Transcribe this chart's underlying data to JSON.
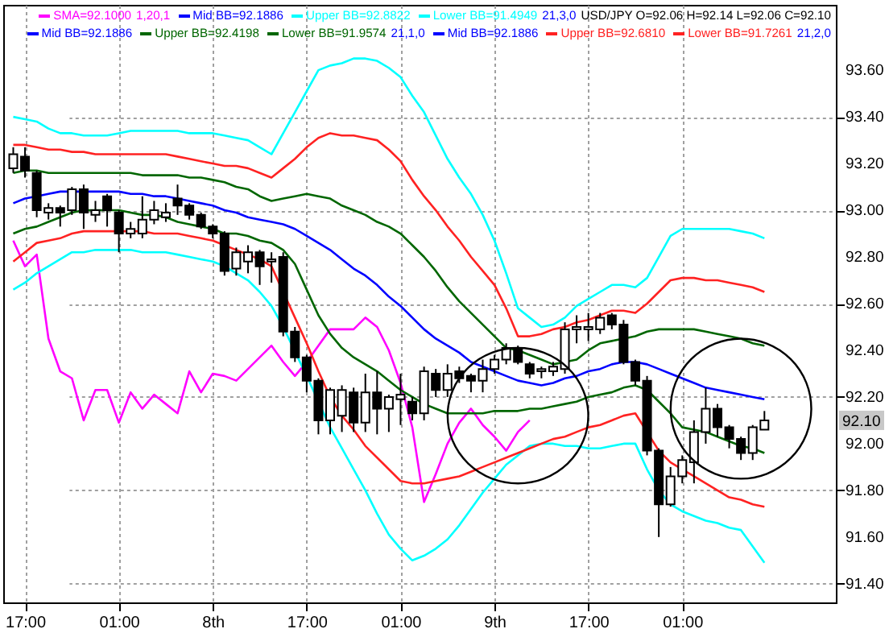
{
  "chart_data": {
    "type": "candlestick",
    "title": "USD/JPY O=92.06 H=92.14 L=92.06 C=92.10",
    "categories": [
      null,
      "17:00",
      null,
      null,
      null,
      null,
      null,
      null,
      null,
      "01:00",
      null,
      null,
      null,
      null,
      null,
      null,
      null,
      "8th",
      null,
      null,
      null,
      null,
      null,
      null,
      null,
      "17:00",
      null,
      null,
      null,
      null,
      null,
      null,
      null,
      "01:00",
      null,
      null,
      null,
      null,
      null,
      null,
      null,
      "9th",
      null,
      null,
      null,
      null,
      null,
      null,
      null,
      "17:00",
      null,
      null,
      null,
      null,
      null,
      null,
      null,
      "01:00",
      null,
      null,
      null,
      null,
      null,
      null,
      null
    ],
    "ohlc": [
      [
        93.18,
        93.27,
        93.16,
        93.24
      ],
      [
        93.23,
        93.27,
        93.14,
        93.17
      ],
      [
        93.16,
        93.17,
        92.97,
        93.0
      ],
      [
        92.99,
        93.03,
        92.96,
        93.01
      ],
      [
        93.01,
        93.02,
        92.93,
        92.99
      ],
      [
        93.0,
        93.1,
        92.98,
        93.09
      ],
      [
        93.09,
        93.11,
        92.92,
        92.99
      ],
      [
        92.98,
        93.04,
        92.95,
        93.0
      ],
      [
        93.06,
        93.07,
        92.93,
        93.0
      ],
      [
        92.99,
        93.0,
        92.82,
        92.9
      ],
      [
        92.9,
        92.95,
        92.88,
        92.92
      ],
      [
        92.9,
        93.06,
        92.88,
        92.96
      ],
      [
        92.96,
        93.04,
        92.94,
        93.0
      ],
      [
        92.97,
        93.03,
        92.95,
        92.99
      ],
      [
        93.05,
        93.11,
        92.98,
        93.02
      ],
      [
        93.02,
        93.03,
        92.96,
        92.98
      ],
      [
        92.98,
        92.99,
        92.92,
        92.93
      ],
      [
        92.93,
        92.94,
        92.88,
        92.9
      ],
      [
        92.9,
        92.91,
        92.72,
        92.74
      ],
      [
        92.75,
        92.84,
        92.72,
        92.82
      ],
      [
        92.78,
        92.85,
        92.73,
        92.82
      ],
      [
        92.82,
        92.83,
        92.68,
        92.76
      ],
      [
        92.78,
        92.82,
        92.69,
        92.79
      ],
      [
        92.8,
        92.82,
        92.46,
        92.48
      ],
      [
        92.48,
        92.5,
        92.35,
        92.37
      ],
      [
        92.37,
        92.38,
        92.22,
        92.27
      ],
      [
        92.27,
        92.28,
        92.04,
        92.1
      ],
      [
        92.1,
        92.24,
        92.04,
        92.23
      ],
      [
        92.12,
        92.25,
        92.05,
        92.23
      ],
      [
        92.22,
        92.24,
        92.05,
        92.09
      ],
      [
        92.09,
        92.3,
        92.05,
        92.22
      ],
      [
        92.22,
        92.31,
        92.04,
        92.15
      ],
      [
        92.15,
        92.21,
        92.05,
        92.2
      ],
      [
        92.19,
        92.3,
        92.08,
        92.21
      ],
      [
        92.18,
        92.2,
        92.1,
        92.13
      ],
      [
        92.13,
        92.33,
        92.1,
        92.31
      ],
      [
        92.3,
        92.32,
        92.2,
        92.23
      ],
      [
        92.23,
        92.34,
        92.2,
        92.3
      ],
      [
        92.31,
        92.33,
        92.26,
        92.28
      ],
      [
        92.29,
        92.3,
        92.22,
        92.27
      ],
      [
        92.27,
        92.36,
        92.22,
        92.32
      ],
      [
        92.32,
        92.38,
        92.3,
        92.36
      ],
      [
        92.36,
        92.43,
        92.34,
        92.41
      ],
      [
        92.41,
        92.42,
        92.34,
        92.35
      ],
      [
        92.34,
        92.35,
        92.28,
        92.3
      ],
      [
        92.31,
        92.33,
        92.28,
        92.32
      ],
      [
        92.31,
        92.35,
        92.29,
        92.33
      ],
      [
        92.32,
        92.52,
        92.3,
        92.49
      ],
      [
        92.49,
        92.55,
        92.43,
        92.5
      ],
      [
        92.49,
        92.56,
        92.44,
        92.5
      ],
      [
        92.49,
        92.56,
        92.47,
        92.54
      ],
      [
        92.55,
        92.56,
        92.49,
        92.51
      ],
      [
        92.51,
        92.53,
        92.34,
        92.35
      ],
      [
        92.35,
        92.36,
        92.25,
        92.27
      ],
      [
        92.27,
        92.29,
        91.95,
        91.97
      ],
      [
        91.97,
        91.98,
        91.6,
        91.74
      ],
      [
        91.74,
        91.9,
        91.73,
        91.86
      ],
      [
        91.86,
        91.95,
        91.83,
        91.93
      ],
      [
        91.92,
        92.1,
        91.83,
        92.05
      ],
      [
        92.05,
        92.24,
        92.0,
        92.15
      ],
      [
        92.15,
        92.17,
        92.03,
        92.07
      ],
      [
        92.07,
        92.08,
        91.98,
        92.02
      ],
      [
        92.02,
        92.03,
        91.93,
        91.96
      ],
      [
        91.96,
        92.08,
        91.93,
        92.07
      ],
      [
        92.06,
        92.14,
        92.06,
        92.1
      ]
    ],
    "series": [
      {
        "name": "SMA=92.1000",
        "type": "line",
        "color": "#ff00ff",
        "values": [
          92.87,
          92.76,
          92.81,
          92.45,
          92.31,
          92.28,
          92.1,
          92.23,
          92.23,
          92.09,
          92.22,
          92.15,
          92.21,
          92.17,
          92.13,
          92.31,
          92.22,
          92.3,
          92.29,
          92.27,
          92.32,
          92.37,
          92.42,
          92.35,
          92.29,
          92.35,
          92.42,
          92.49,
          92.49,
          92.49,
          92.54,
          92.5,
          92.4,
          92.26,
          92.07,
          91.75,
          91.87,
          92.0,
          92.09,
          92.15,
          92.08,
          92.03,
          91.97,
          92.05,
          92.1,
          null,
          null,
          null,
          null,
          null,
          null,
          null,
          null,
          null,
          null,
          null,
          null,
          null,
          null,
          null,
          null,
          null,
          null,
          null,
          null
        ]
      },
      {
        "name": "Mid BB=92.1886",
        "type": "line",
        "color": "#0000ff",
        "values": [
          93.03,
          93.05,
          93.06,
          93.07,
          93.08,
          93.08,
          93.08,
          93.08,
          93.08,
          93.08,
          93.07,
          93.07,
          93.06,
          93.06,
          93.05,
          93.04,
          93.03,
          93.02,
          93.0,
          92.99,
          92.97,
          92.96,
          92.95,
          92.94,
          92.92,
          92.89,
          92.86,
          92.83,
          92.79,
          92.75,
          92.72,
          92.68,
          92.63,
          92.59,
          92.54,
          92.49,
          92.45,
          92.42,
          92.39,
          92.35,
          92.33,
          92.31,
          92.29,
          92.27,
          92.26,
          92.25,
          92.26,
          92.28,
          92.29,
          92.31,
          92.32,
          92.34,
          92.35,
          92.35,
          92.34,
          92.32,
          92.3,
          92.28,
          92.26,
          92.24,
          92.23,
          92.22,
          92.21,
          92.2,
          92.19
        ]
      },
      {
        "name": "Upper BB=92.8822",
        "type": "line",
        "color": "#00ffff",
        "values": [
          93.4,
          93.39,
          93.38,
          93.35,
          93.33,
          93.33,
          93.32,
          93.32,
          93.32,
          93.33,
          93.34,
          93.34,
          93.34,
          93.34,
          93.34,
          93.33,
          93.33,
          93.33,
          93.32,
          93.31,
          93.3,
          93.27,
          93.24,
          93.33,
          93.42,
          93.51,
          93.6,
          93.62,
          93.63,
          93.65,
          93.65,
          93.64,
          93.61,
          93.57,
          93.49,
          93.42,
          93.32,
          93.22,
          93.14,
          93.07,
          92.98,
          92.87,
          92.73,
          92.58,
          92.54,
          92.5,
          92.51,
          92.54,
          92.59,
          92.62,
          92.65,
          92.68,
          92.68,
          92.67,
          92.71,
          92.8,
          92.89,
          92.92,
          92.92,
          92.92,
          92.92,
          92.92,
          92.91,
          92.9,
          92.88
        ]
      },
      {
        "name": "Lower BB=91.4949",
        "type": "line",
        "color": "#00ffff",
        "values": [
          92.66,
          92.69,
          92.73,
          92.76,
          92.79,
          92.82,
          92.82,
          92.83,
          92.83,
          92.83,
          92.83,
          92.82,
          92.82,
          92.82,
          92.81,
          92.8,
          92.79,
          92.78,
          92.76,
          92.73,
          92.7,
          92.65,
          92.59,
          92.5,
          null,
          92.29,
          null,
          92.07,
          91.98,
          91.89,
          91.8,
          91.7,
          91.61,
          91.55,
          91.5,
          91.52,
          91.55,
          91.59,
          91.65,
          91.72,
          91.79,
          91.85,
          91.91,
          91.95,
          91.99,
          92.0,
          92.0,
          91.99,
          91.99,
          91.98,
          91.98,
          91.99,
          92.0,
          92.0,
          91.89,
          91.8,
          91.74,
          91.71,
          91.69,
          91.67,
          91.66,
          91.64,
          91.63,
          91.56,
          91.49
        ]
      },
      {
        "name": "Upper BB=92.4198",
        "type": "line",
        "color": "#006600",
        "values": [
          93.16,
          93.17,
          93.17,
          93.16,
          93.16,
          93.16,
          93.16,
          93.16,
          93.16,
          93.16,
          93.16,
          93.15,
          93.15,
          93.15,
          93.15,
          93.14,
          93.14,
          93.13,
          93.12,
          93.1,
          93.09,
          93.06,
          93.04,
          93.05,
          93.06,
          93.07,
          93.06,
          93.05,
          93.02,
          93.0,
          92.98,
          92.95,
          92.93,
          92.9,
          92.85,
          92.8,
          92.74,
          92.67,
          92.61,
          92.56,
          92.51,
          92.46,
          92.41,
          92.4,
          92.38,
          92.36,
          92.34,
          92.35,
          92.36,
          92.4,
          92.43,
          92.44,
          92.45,
          92.46,
          92.48,
          92.49,
          92.49,
          92.49,
          92.49,
          92.48,
          92.47,
          92.46,
          92.45,
          92.43,
          92.42
        ]
      },
      {
        "name": "Lower BB=91.9574",
        "type": "line",
        "color": "#006600",
        "values": [
          92.9,
          92.92,
          92.93,
          92.95,
          92.97,
          92.99,
          93.0,
          93.0,
          93.0,
          93.0,
          92.99,
          92.98,
          92.98,
          92.97,
          92.95,
          92.94,
          92.93,
          92.92,
          92.9,
          92.9,
          92.89,
          92.87,
          92.86,
          92.83,
          92.77,
          92.66,
          92.55,
          92.47,
          92.41,
          92.37,
          92.34,
          92.31,
          92.27,
          92.23,
          92.2,
          92.17,
          92.15,
          92.13,
          92.13,
          92.13,
          92.13,
          92.14,
          92.14,
          92.14,
          92.15,
          92.15,
          92.16,
          92.17,
          92.18,
          92.2,
          92.21,
          92.22,
          92.24,
          92.25,
          92.23,
          92.18,
          92.13,
          92.07,
          92.06,
          92.05,
          92.03,
          92.01,
          91.99,
          91.98,
          91.96
        ]
      },
      {
        "name": "Upper BB=92.6810",
        "type": "line",
        "color": "#ff2222",
        "values": [
          93.28,
          93.28,
          93.27,
          93.26,
          93.26,
          93.25,
          93.25,
          93.24,
          93.24,
          93.24,
          93.24,
          93.24,
          93.24,
          93.24,
          93.23,
          93.22,
          93.21,
          93.2,
          93.19,
          93.19,
          93.18,
          93.16,
          93.14,
          93.18,
          93.22,
          93.27,
          93.31,
          93.33,
          93.32,
          93.32,
          93.31,
          93.3,
          93.26,
          93.21,
          93.13,
          93.06,
          93.0,
          92.93,
          92.87,
          92.8,
          92.74,
          92.68,
          92.58,
          92.46,
          92.46,
          92.47,
          92.49,
          92.5,
          92.52,
          92.53,
          92.55,
          92.57,
          92.57,
          92.56,
          92.6,
          92.65,
          92.7,
          92.71,
          92.71,
          92.7,
          92.7,
          92.69,
          92.68,
          92.67,
          92.65
        ]
      },
      {
        "name": "Lower BB=91.7261",
        "type": "line",
        "color": "#ff2222",
        "values": [
          92.78,
          92.82,
          92.86,
          92.87,
          92.88,
          92.9,
          92.91,
          92.91,
          92.91,
          92.91,
          92.91,
          92.91,
          92.9,
          92.9,
          92.9,
          92.89,
          92.88,
          92.87,
          92.85,
          92.83,
          92.81,
          92.79,
          92.76,
          null,
          92.54,
          92.43,
          92.31,
          92.2,
          92.12,
          92.06,
          91.99,
          91.94,
          91.89,
          91.84,
          91.83,
          91.83,
          91.84,
          91.85,
          91.86,
          91.88,
          91.9,
          91.92,
          91.94,
          91.96,
          91.98,
          92.0,
          92.02,
          92.03,
          92.05,
          92.07,
          92.08,
          92.1,
          92.12,
          92.13,
          null,
          91.97,
          91.92,
          91.89,
          91.86,
          91.83,
          91.8,
          91.77,
          91.76,
          91.74,
          91.73
        ]
      }
    ],
    "annotations": [
      "1,20,1",
      "21,3,0",
      "21,1,0",
      "21,2,0",
      "92.10"
    ],
    "ylim": [
      91.32,
      93.88
    ],
    "yticks": [
      {
        "value": 93.6,
        "label": "93.60"
      },
      {
        "value": 93.4,
        "label": "93.40"
      },
      {
        "value": 93.2,
        "label": "93.20"
      },
      {
        "value": 93.0,
        "label": "93.00"
      },
      {
        "value": 92.8,
        "label": "92.80"
      },
      {
        "value": 92.6,
        "label": "92.60"
      },
      {
        "value": 92.4,
        "label": "92.40"
      },
      {
        "value": 92.2,
        "label": "92.20"
      },
      {
        "value": 92.0,
        "label": "92.00"
      },
      {
        "value": 91.8,
        "label": "91.80"
      },
      {
        "value": 91.6,
        "label": "91.60"
      },
      {
        "value": 91.4,
        "label": "91.40"
      }
    ],
    "grid": true,
    "legend": "top"
  }
}
